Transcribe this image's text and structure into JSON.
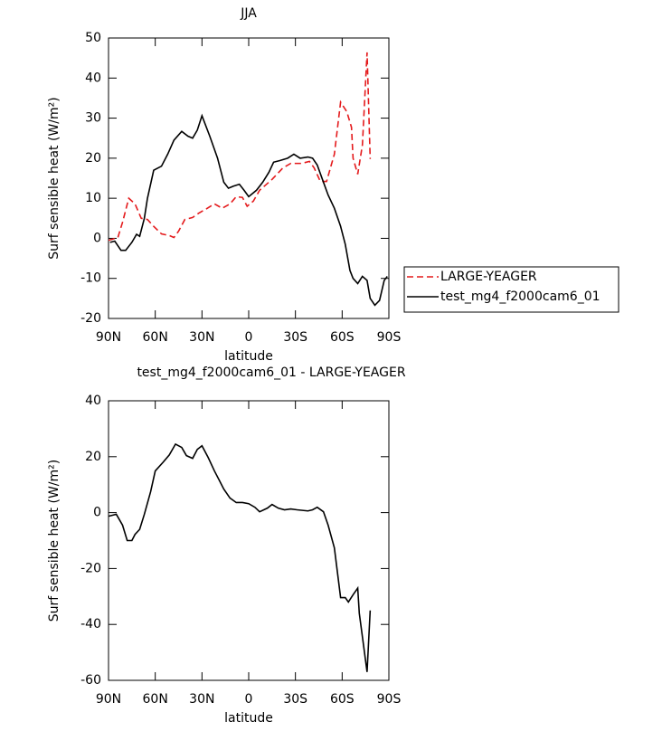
{
  "chart_data": [
    {
      "type": "line",
      "title": "JJA",
      "xlabel": "latitude",
      "ylabel": "Surf sensible heat (W/m²)",
      "xlim": [
        90,
        -90
      ],
      "ylim": [
        -20,
        50
      ],
      "xticks": [
        {
          "value": 90,
          "label": "90N"
        },
        {
          "value": 60,
          "label": "60N"
        },
        {
          "value": 30,
          "label": "30N"
        },
        0,
        {
          "value": -30,
          "label": "30S"
        },
        {
          "value": -60,
          "label": "60S"
        },
        {
          "value": -90,
          "label": "90S"
        }
      ],
      "yticks": [
        -20,
        -10,
        0,
        10,
        20,
        30,
        40,
        50
      ],
      "legend": "right",
      "series": [
        {
          "name": "LARGE-YEAGER",
          "color": "#e41a1c",
          "style": "dashed",
          "x": [
            90,
            84,
            81,
            77,
            73,
            69,
            65,
            61,
            56,
            51,
            48,
            45,
            41,
            36,
            32,
            27,
            22,
            17,
            12,
            8,
            4,
            1,
            -3,
            -7,
            -15,
            -22,
            -27,
            -34,
            -39,
            -42,
            -46,
            -50,
            -55,
            -59,
            -63,
            -66,
            -67,
            -70,
            -73,
            -76,
            -78
          ],
          "values": [
            -0.5,
            0.2,
            4,
            10,
            8.6,
            5,
            4.7,
            3,
            1.1,
            0.7,
            0.2,
            1.8,
            4.7,
            5.2,
            6.3,
            7.4,
            8.6,
            7.5,
            8.6,
            10.4,
            10.2,
            8,
            9.3,
            12,
            14.7,
            17.6,
            18.7,
            18.7,
            19.2,
            17.6,
            14.2,
            14.2,
            21,
            34,
            31.6,
            27.7,
            20,
            16,
            23.3,
            46.4,
            19.8
          ]
        },
        {
          "name": "test_mg4_f2000cam6_01",
          "color": "#000000",
          "style": "solid",
          "x": [
            89,
            86,
            82,
            79,
            75,
            72,
            70,
            67,
            65,
            61,
            56,
            52,
            48,
            43,
            39,
            36,
            33,
            30,
            25,
            20,
            16,
            13,
            10,
            6,
            3,
            0,
            -5,
            -9,
            -13,
            -16,
            -20,
            -25,
            -29,
            -33,
            -38,
            -41,
            -44,
            -48,
            -51,
            -55,
            -59,
            -62,
            -65,
            -67,
            -70,
            -73,
            -76,
            -78,
            -81,
            -84,
            -87,
            -89
          ],
          "values": [
            -1,
            -0.7,
            -3,
            -3,
            -1,
            1,
            0.5,
            5,
            10,
            17,
            18,
            21,
            24.5,
            26.7,
            25.5,
            25,
            27,
            30.6,
            25.5,
            20,
            14,
            12.5,
            13,
            13.5,
            12,
            10.4,
            12,
            14,
            16.5,
            19,
            19.4,
            20,
            21,
            20,
            20.3,
            20,
            18.3,
            14,
            10.8,
            7.5,
            3,
            -1.5,
            -8,
            -10,
            -11.3,
            -9.5,
            -10.5,
            -15,
            -16.7,
            -15.5,
            -10.5,
            -9.5
          ]
        }
      ]
    },
    {
      "type": "line",
      "title": "test_mg4_f2000cam6_01 - LARGE-YEAGER",
      "xlabel": "latitude",
      "ylabel": "Surf sensible heat (W/m²)",
      "xlim": [
        90,
        -90
      ],
      "ylim": [
        -60,
        40
      ],
      "xticks": [
        {
          "value": 90,
          "label": "90N"
        },
        {
          "value": 60,
          "label": "60N"
        },
        {
          "value": 30,
          "label": "30N"
        },
        0,
        {
          "value": -30,
          "label": "30S"
        },
        {
          "value": -60,
          "label": "60S"
        },
        {
          "value": -90,
          "label": "90S"
        }
      ],
      "yticks": [
        -60,
        -40,
        -20,
        0,
        20,
        40
      ],
      "series": [
        {
          "color": "#000000",
          "style": "solid",
          "x": [
            90,
            85,
            81,
            78,
            75,
            73,
            70,
            67,
            63,
            60,
            55,
            51,
            47,
            43,
            40,
            36,
            33,
            30,
            26,
            22,
            19,
            16,
            12,
            8,
            4,
            0,
            -4,
            -7,
            -12,
            -15,
            -19,
            -23,
            -27,
            -31,
            -38,
            -41,
            -44,
            -48,
            -51,
            -55,
            -59,
            -62,
            -64,
            -67,
            -70,
            -71,
            -76,
            -78
          ],
          "values": [
            -1.3,
            -0.6,
            -4.5,
            -10,
            -10,
            -7.8,
            -6,
            -0.6,
            7.4,
            14.9,
            18,
            20.6,
            24.5,
            23.3,
            20.4,
            19.4,
            22.6,
            23.9,
            19.7,
            14.9,
            11.7,
            8.4,
            5.2,
            3.6,
            3.6,
            3.2,
            1.9,
            0.3,
            1.6,
            2.9,
            1.6,
            1,
            1.3,
            1,
            0.6,
            1,
            1.9,
            0.3,
            -4.5,
            -12.6,
            -30.4,
            -30.4,
            -32,
            -29.4,
            -27,
            -36,
            -57,
            -35
          ]
        }
      ]
    }
  ]
}
